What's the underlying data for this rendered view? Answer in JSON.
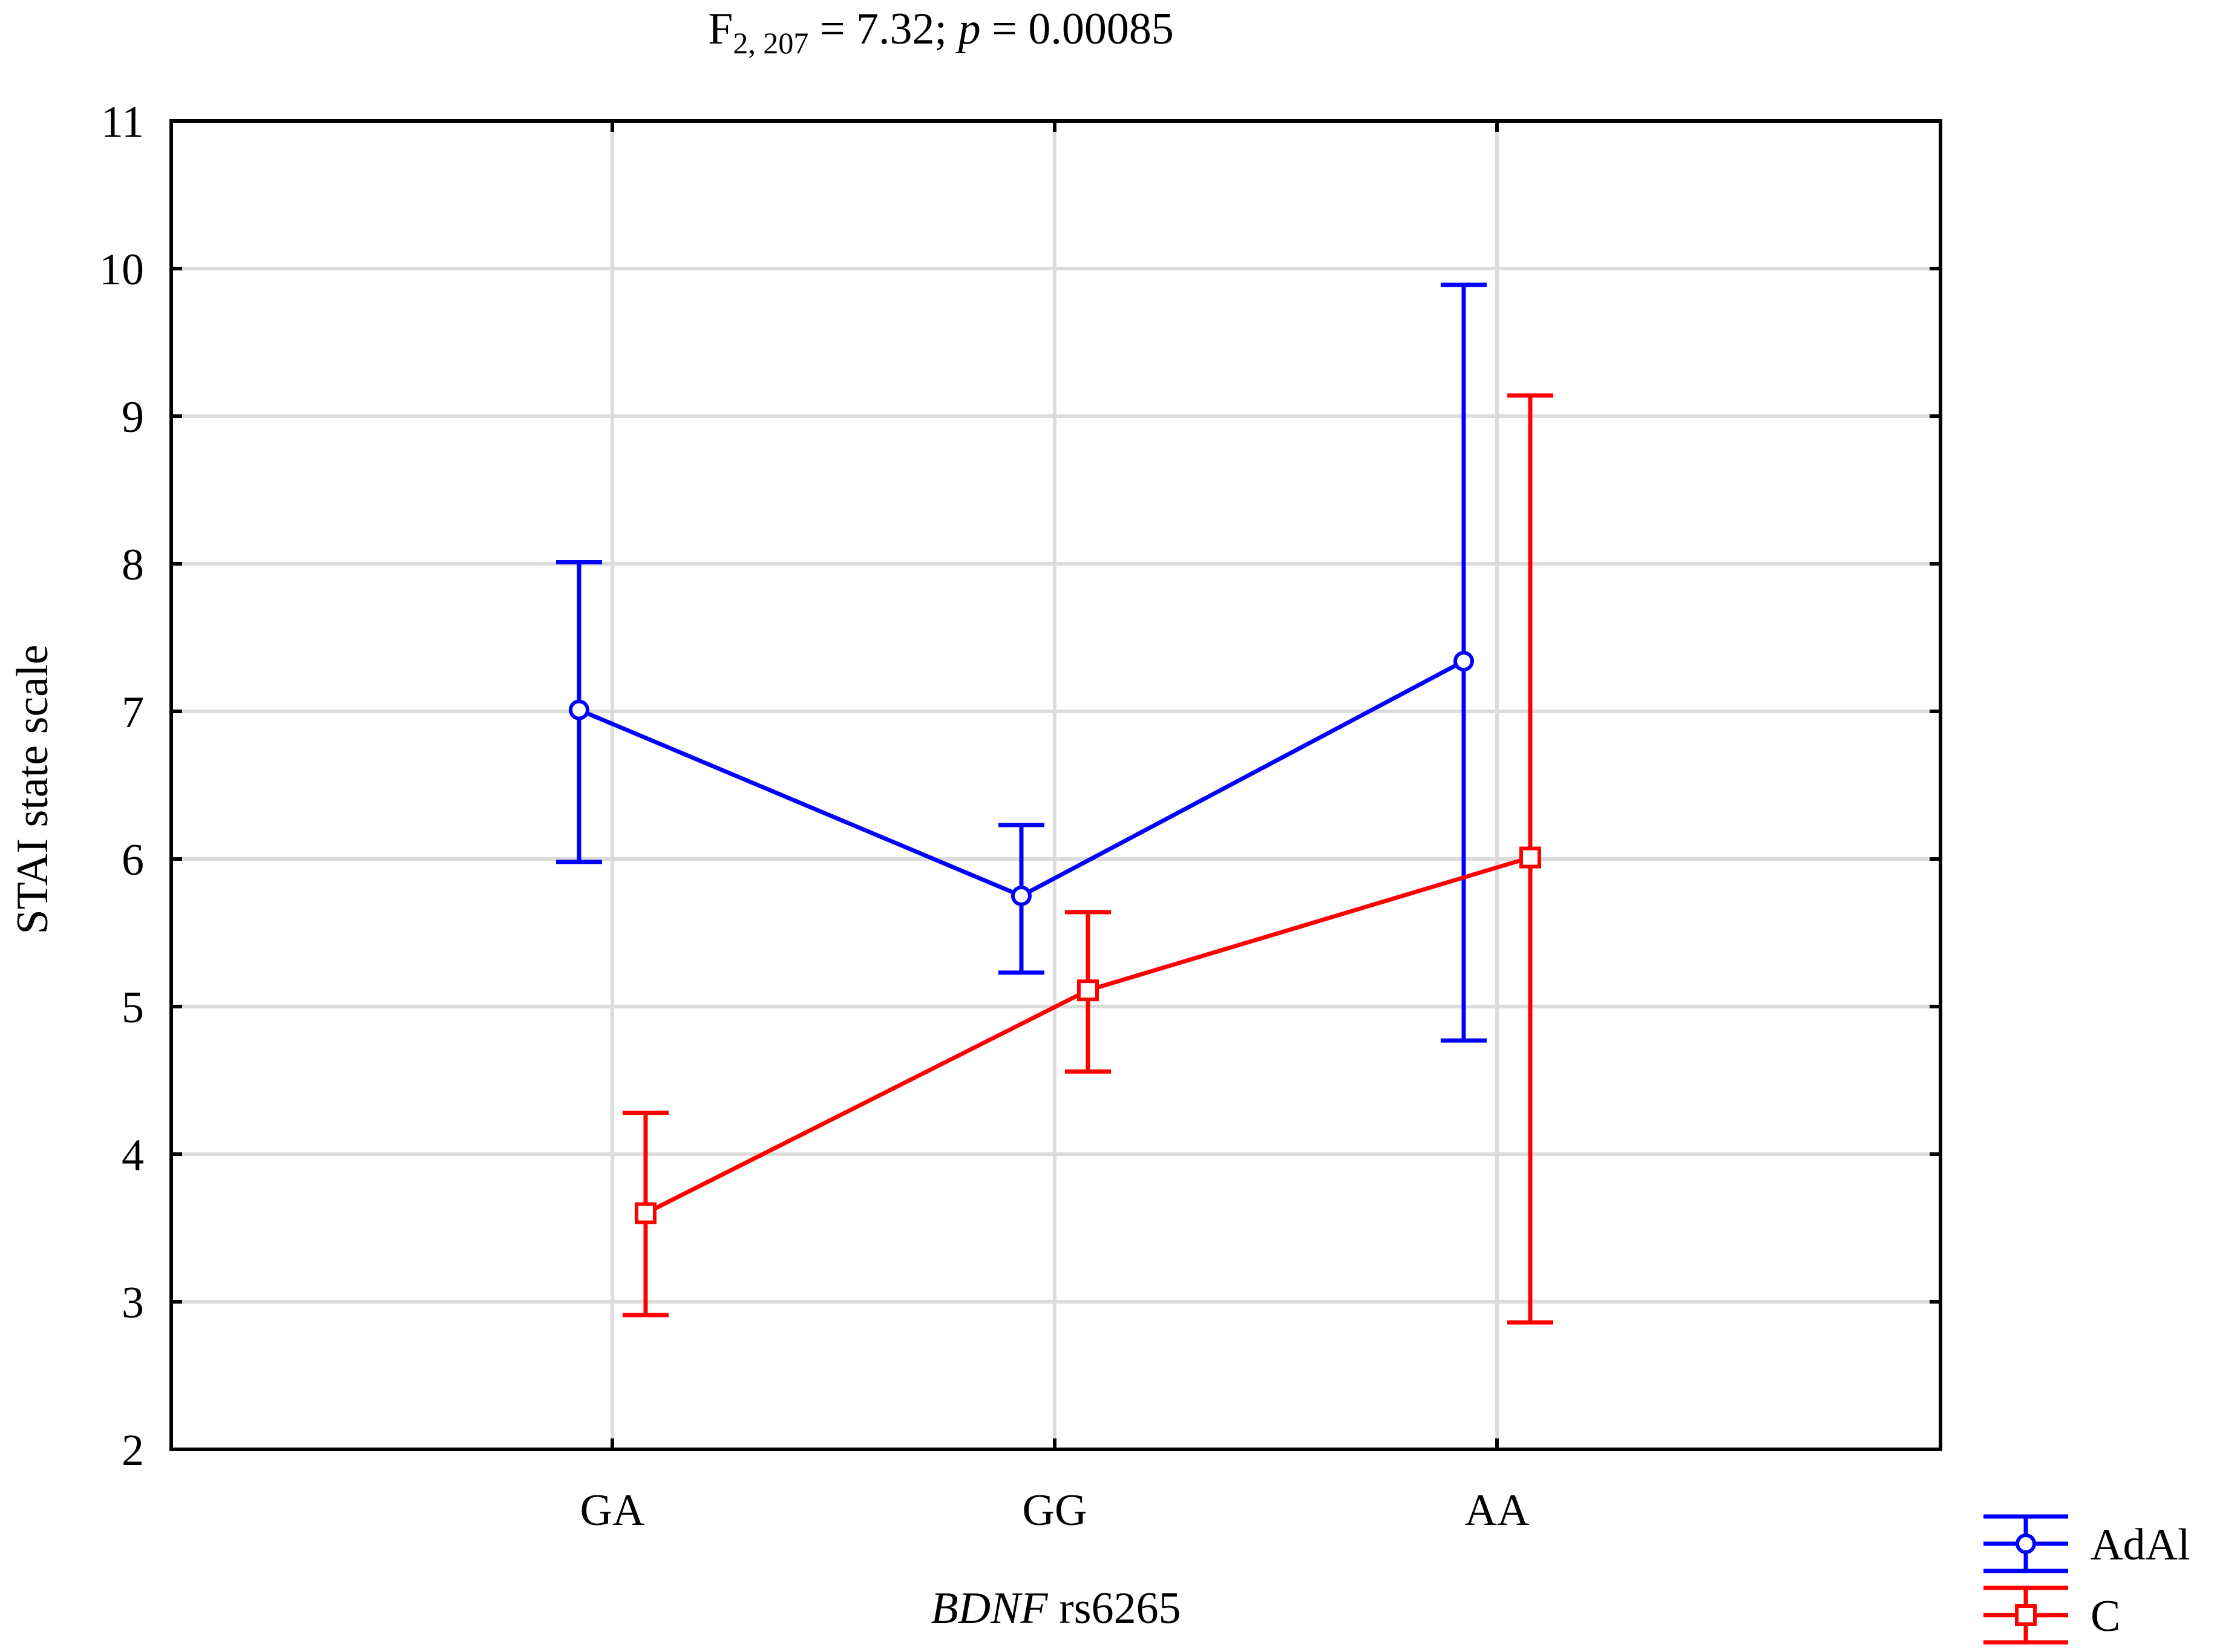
{
  "chart_data": {
    "type": "line",
    "title": {
      "prefix": "F",
      "subscript": "2, 207",
      "middle": " = 7.32; ",
      "p_symbol": "p",
      "suffix": " = 0.00085"
    },
    "xlabel": {
      "italic": "BDNF",
      "rest": " rs6265"
    },
    "ylabel": "STAI state scale",
    "categories": [
      "GA",
      "GG",
      "AA"
    ],
    "ylim": [
      2,
      11
    ],
    "yticks": [
      "2",
      "3",
      "4",
      "5",
      "6",
      "7",
      "8",
      "9",
      "10",
      "11"
    ],
    "grid": true,
    "legend_position": "bottom-right outside",
    "series": [
      {
        "name": "AdAl",
        "color": "#0000ff",
        "marker": "circle",
        "values": [
          7.01,
          5.75,
          7.34
        ],
        "lower": [
          5.98,
          5.23,
          4.77
        ],
        "upper": [
          8.01,
          6.23,
          9.89
        ]
      },
      {
        "name": "C",
        "color": "#ff0000",
        "marker": "square",
        "values": [
          3.6,
          5.11,
          6.01
        ],
        "lower": [
          2.91,
          4.56,
          2.86
        ],
        "upper": [
          4.28,
          5.64,
          9.14
        ]
      }
    ]
  }
}
